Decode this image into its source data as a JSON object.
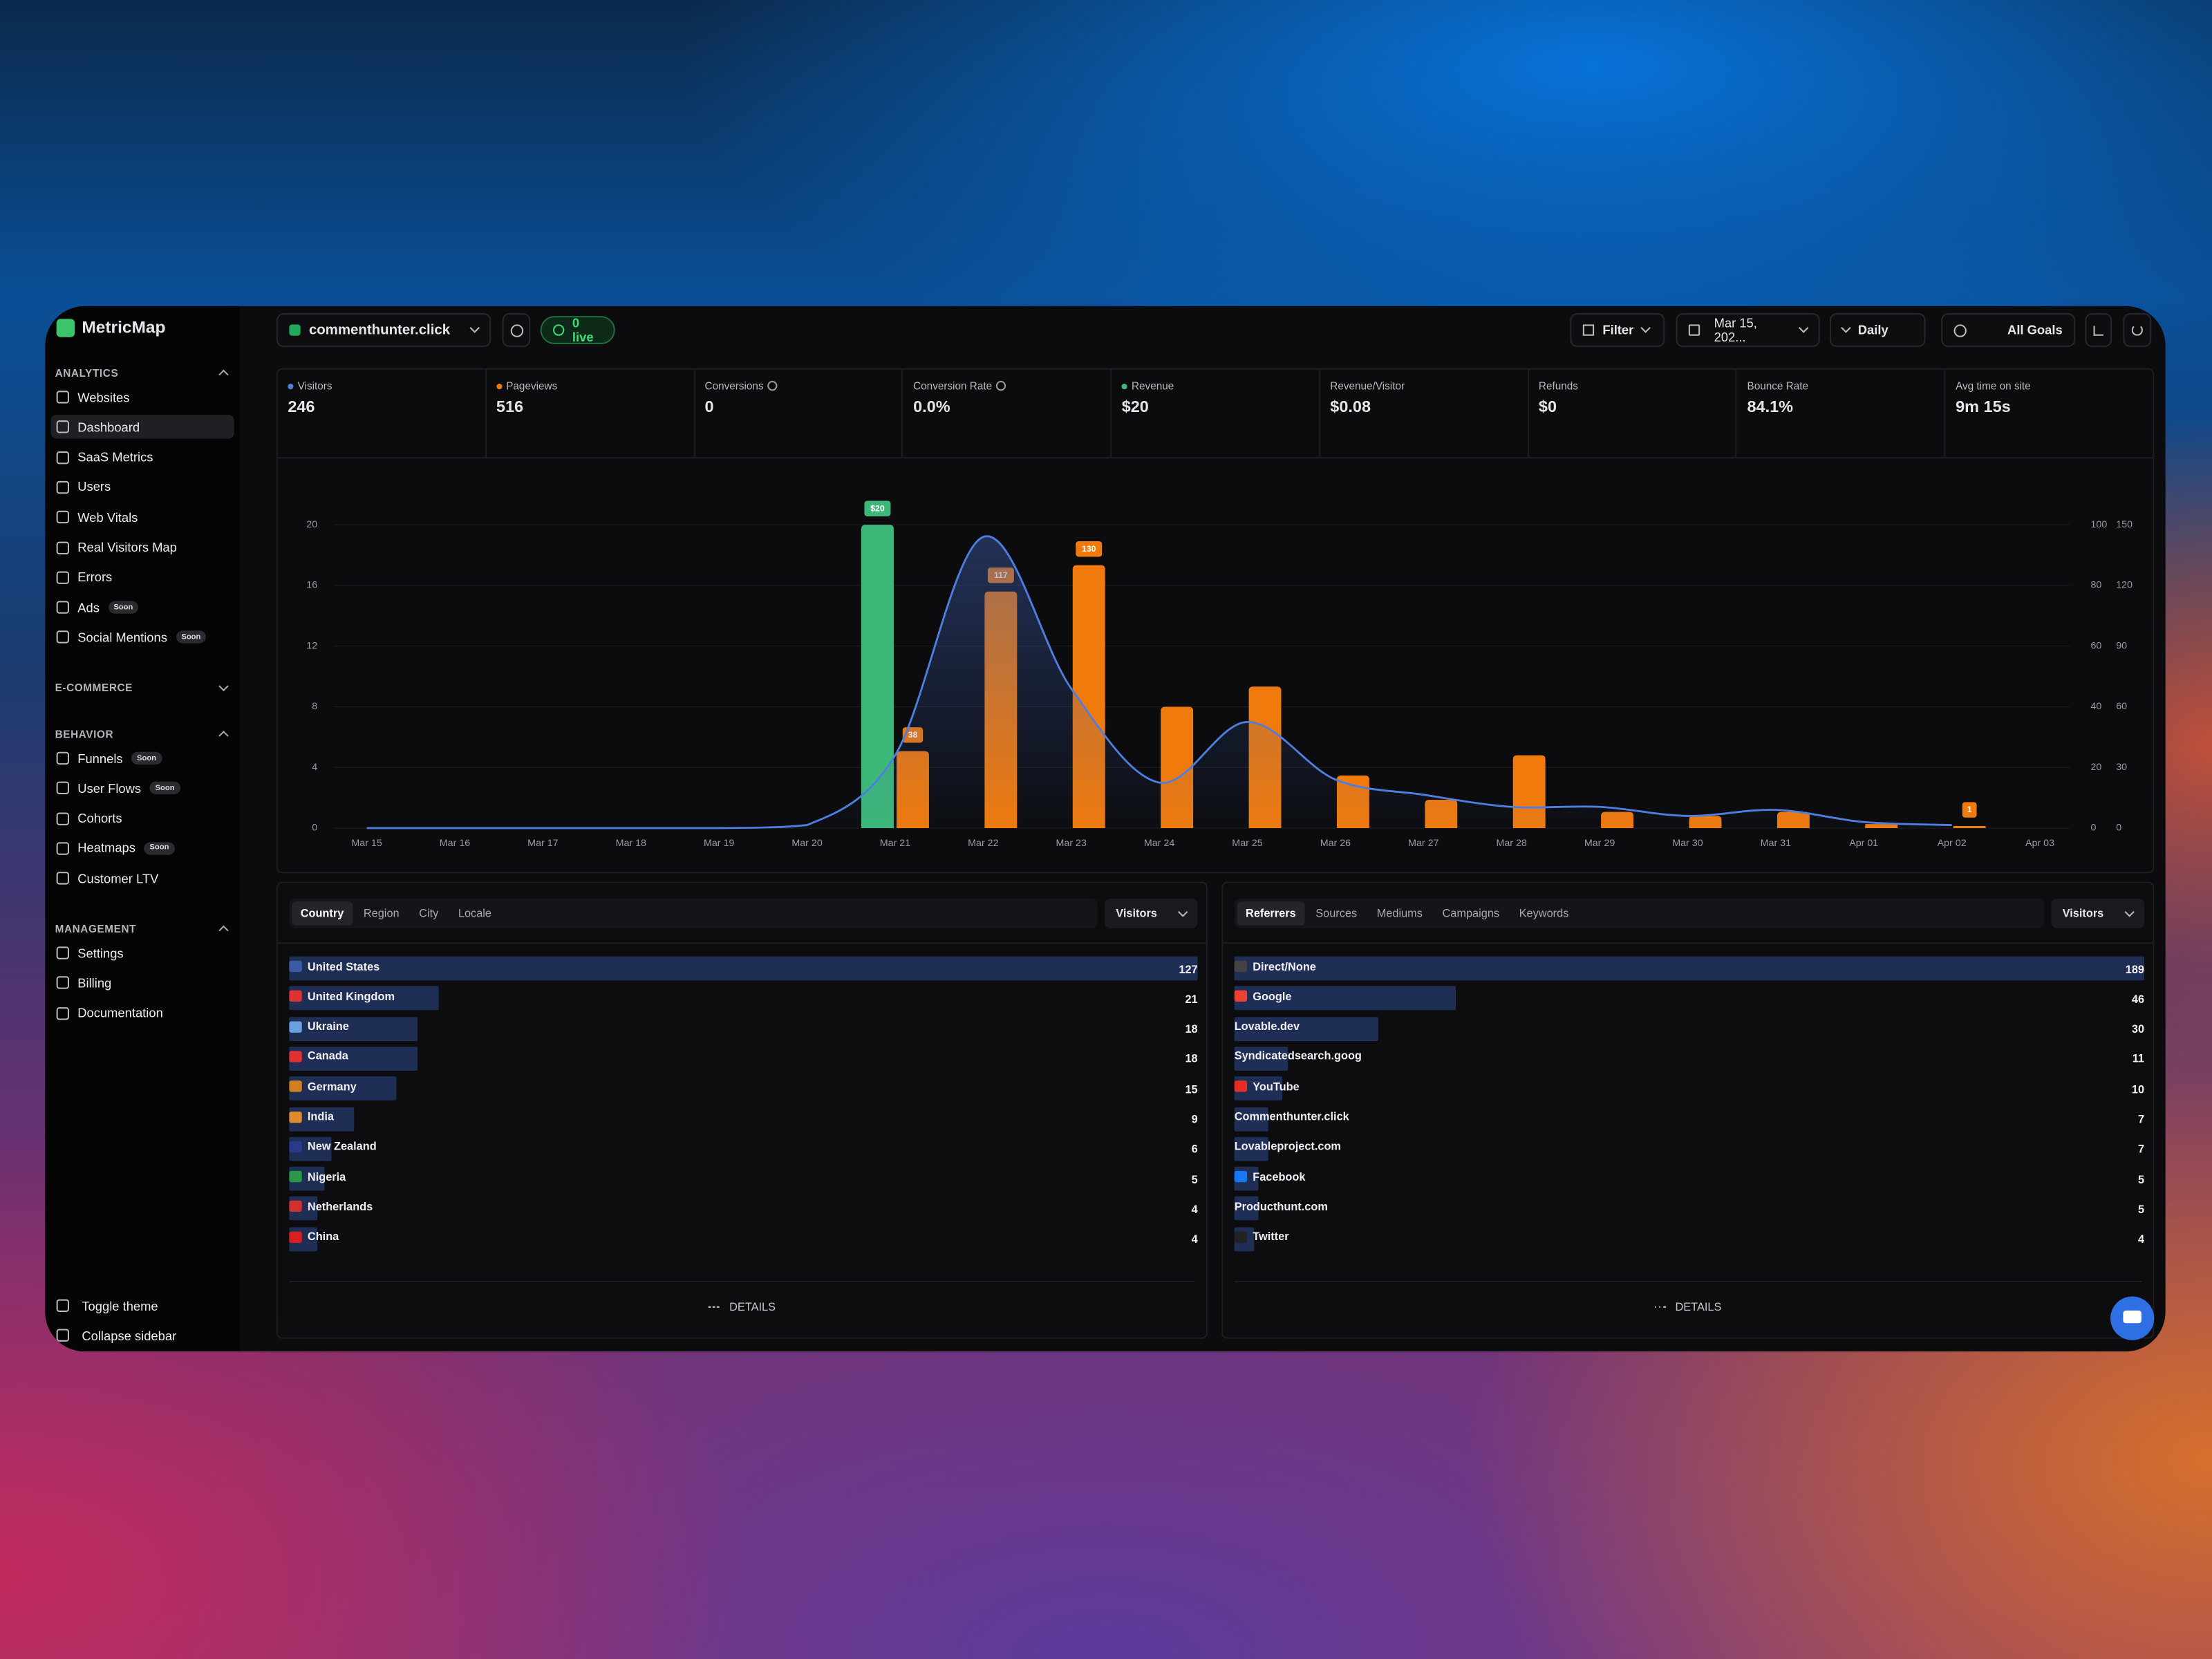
{
  "sidebar": {
    "brand": "MetricMap",
    "sections": [
      {
        "title": "ANALYTICS",
        "items": [
          {
            "label": "Websites"
          },
          {
            "label": "Dashboard",
            "active": true
          },
          {
            "label": "SaaS Metrics"
          },
          {
            "label": "Users"
          },
          {
            "label": "Web Vitals"
          },
          {
            "label": "Real Visitors Map"
          },
          {
            "label": "Errors"
          },
          {
            "label": "Ads",
            "badge": "Soon"
          },
          {
            "label": "Social Mentions",
            "badge": "Soon"
          }
        ]
      },
      {
        "title": "E-COMMERCE",
        "collapsed": true,
        "items": []
      },
      {
        "title": "BEHAVIOR",
        "items": [
          {
            "label": "Funnels",
            "badge": "Soon"
          },
          {
            "label": "User Flows",
            "badge": "Soon"
          },
          {
            "label": "Cohorts"
          },
          {
            "label": "Heatmaps",
            "badge": "Soon"
          },
          {
            "label": "Customer LTV"
          }
        ]
      },
      {
        "title": "MANAGEMENT",
        "items": [
          {
            "label": "Settings"
          },
          {
            "label": "Billing"
          },
          {
            "label": "Documentation"
          }
        ]
      }
    ],
    "footer": [
      "Toggle theme",
      "Collapse sidebar"
    ]
  },
  "topbar": {
    "site": "commenthunter.click",
    "live": "0 live",
    "filter": "Filter",
    "date": "Mar 15, 202...",
    "interval": "Daily",
    "goals": "All Goals"
  },
  "metrics": [
    {
      "label": "Visitors",
      "value": "246",
      "dot": "#4d7fe0"
    },
    {
      "label": "Pageviews",
      "value": "516",
      "dot": "#f07a0c"
    },
    {
      "label": "Conversions",
      "value": "0",
      "info": true
    },
    {
      "label": "Conversion Rate",
      "value": "0.0%",
      "info": true
    },
    {
      "label": "Revenue",
      "value": "$20",
      "dot": "#3cb878"
    },
    {
      "label": "Revenue/Visitor",
      "value": "$0.08"
    },
    {
      "label": "Refunds",
      "value": "$0"
    },
    {
      "label": "Bounce Rate",
      "value": "84.1%"
    },
    {
      "label": "Avg time on site",
      "value": "9m 15s"
    }
  ],
  "chart_data": {
    "type": "bar",
    "categories": [
      "Mar 15",
      "Mar 16",
      "Mar 17",
      "Mar 18",
      "Mar 19",
      "Mar 20",
      "Mar 21",
      "Mar 22",
      "Mar 23",
      "Mar 24",
      "Mar 25",
      "Mar 26",
      "Mar 27",
      "Mar 28",
      "Mar 29",
      "Mar 30",
      "Mar 31",
      "Apr 01",
      "Apr 02",
      "Apr 03"
    ],
    "series": [
      {
        "type": "bar",
        "axis": "y",
        "color": "#3cb878",
        "values": [
          0,
          0,
          0,
          0,
          0,
          0,
          20,
          0,
          0,
          0,
          0,
          0,
          0,
          0,
          0,
          0,
          0,
          0,
          0,
          0
        ],
        "value_labels": [
          null,
          null,
          null,
          null,
          null,
          null,
          "$20",
          null,
          null,
          null,
          null,
          null,
          null,
          null,
          null,
          null,
          null,
          null,
          null,
          null
        ]
      },
      {
        "type": "line",
        "axis": "y2",
        "color": "#4d7fe0",
        "values": [
          0,
          0,
          0,
          0,
          0,
          1,
          24,
          96,
          46,
          15,
          35,
          16,
          11,
          7,
          7,
          4,
          6,
          2,
          1,
          null
        ]
      },
      {
        "type": "bar",
        "axis": "y3",
        "color": "#f07a0c",
        "values": [
          0,
          0,
          0,
          0,
          0,
          0,
          38,
          117,
          130,
          60,
          70,
          26,
          14,
          36,
          8,
          6,
          8,
          2,
          1,
          0
        ],
        "value_labels": [
          null,
          null,
          null,
          null,
          null,
          null,
          "38",
          "117",
          "130",
          null,
          null,
          null,
          null,
          null,
          null,
          null,
          null,
          null,
          "1",
          null
        ]
      }
    ],
    "ylim": [
      0,
      20
    ],
    "yticks": [
      0,
      4,
      8,
      12,
      16,
      20
    ],
    "y2lim": [
      0,
      100
    ],
    "y2ticks": [
      0,
      20,
      40,
      60,
      80,
      100
    ],
    "y3lim": [
      0,
      150
    ],
    "y3ticks": [
      0,
      30,
      60,
      90,
      120,
      150
    ],
    "grid": true
  },
  "panels": [
    {
      "tabs": [
        {
          "label": "Country",
          "active": true
        },
        {
          "label": "Region"
        },
        {
          "label": "City"
        },
        {
          "label": "Locale"
        }
      ],
      "metric": "Visitors",
      "rows": [
        {
          "label": "United States",
          "value": 127,
          "icon": true
        },
        {
          "label": "United Kingdom",
          "value": 21,
          "icon": true
        },
        {
          "label": "Ukraine",
          "value": 18,
          "icon": true
        },
        {
          "label": "Canada",
          "value": 18,
          "icon": true
        },
        {
          "label": "Germany",
          "value": 15,
          "icon": true
        },
        {
          "label": "India",
          "value": 9,
          "icon": true
        },
        {
          "label": "New Zealand",
          "value": 6,
          "icon": true
        },
        {
          "label": "Nigeria",
          "value": 5,
          "icon": true
        },
        {
          "label": "Netherlands",
          "value": 4,
          "icon": true
        },
        {
          "label": "China",
          "value": 4,
          "icon": true
        }
      ],
      "footer": "DETAILS"
    },
    {
      "tabs": [
        {
          "label": "Referrers",
          "active": true
        },
        {
          "label": "Sources"
        },
        {
          "label": "Mediums"
        },
        {
          "label": "Campaigns"
        },
        {
          "label": "Keywords"
        }
      ],
      "metric": "Visitors",
      "rows": [
        {
          "label": "Direct/None",
          "value": 189,
          "icon": true
        },
        {
          "label": "Google",
          "value": 46,
          "icon": true
        },
        {
          "label": "Lovable.dev",
          "value": 30
        },
        {
          "label": "Syndicatedsearch.goog",
          "value": 11
        },
        {
          "label": "YouTube",
          "value": 10,
          "icon": true
        },
        {
          "label": "Commenthunter.click",
          "value": 7
        },
        {
          "label": "Lovableproject.com",
          "value": 7
        },
        {
          "label": "Facebook",
          "value": 5,
          "icon": true
        },
        {
          "label": "Producthunt.com",
          "value": 5
        },
        {
          "label": "Twitter",
          "value": 4,
          "icon": true
        }
      ],
      "footer": "DETAILS"
    }
  ]
}
